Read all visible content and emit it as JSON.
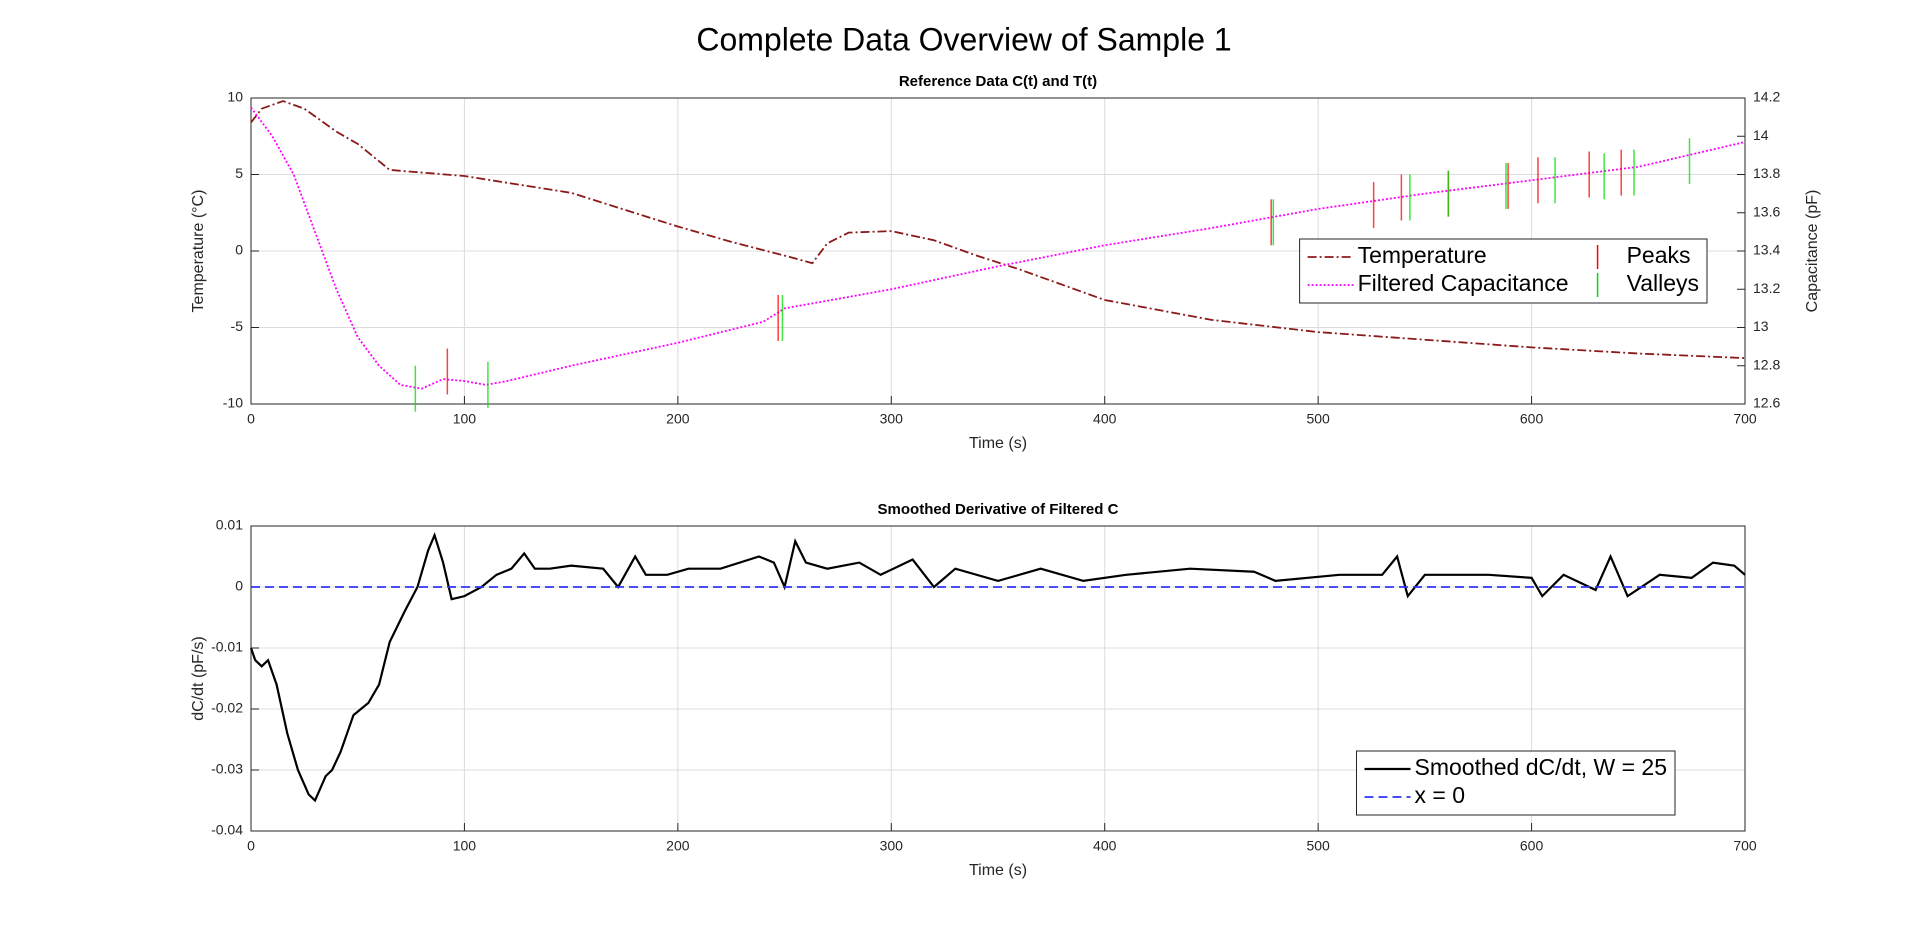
{
  "title": "Complete Data Overview of Sample 1",
  "chart_data": [
    {
      "type": "line",
      "title": "Reference Data C(t) and T(t)",
      "xlabel": "Time (s)",
      "ylabel": "Temperature (°C)",
      "y2label": "Capacitance (pF)",
      "xlim": [
        0,
        700
      ],
      "xticks": [
        0,
        100,
        200,
        300,
        400,
        500,
        600,
        700
      ],
      "ylim": [
        -10,
        10
      ],
      "yticks": [
        -10,
        -5,
        0,
        5,
        10
      ],
      "y2lim": [
        12.6,
        14.2
      ],
      "y2ticks": [
        12.6,
        12.8,
        13,
        13.2,
        13.4,
        13.6,
        13.8,
        14,
        14.2
      ],
      "grid": true,
      "legend": "east",
      "legend_columns": 2,
      "series": [
        {
          "name": "Temperature",
          "color": "#8b1a1a",
          "style": "dashdot",
          "x": [
            0,
            5,
            15,
            25,
            40,
            50,
            65,
            100,
            150,
            175,
            200,
            225,
            250,
            263,
            270,
            280,
            300,
            320,
            340,
            360,
            400,
            450,
            500,
            550,
            600,
            650,
            700
          ],
          "values": [
            8.4,
            9.3,
            9.8,
            9.3,
            7.8,
            7,
            5.3,
            4.9,
            3.8,
            2.7,
            1.6,
            0.6,
            -0.3,
            -0.8,
            0.5,
            1.2,
            1.3,
            0.7,
            -0.3,
            -1.2,
            -3.2,
            -4.5,
            -5.3,
            -5.8,
            -6.3,
            -6.7,
            -7
          ]
        },
        {
          "name": "Filtered Capacitance",
          "color": "#ff00ff",
          "style": "dotted",
          "axis": "y2",
          "x": [
            0,
            10,
            20,
            30,
            40,
            50,
            60,
            70,
            80,
            90,
            100,
            110,
            120,
            150,
            200,
            240,
            250,
            300,
            350,
            400,
            450,
            500,
            550,
            600,
            650,
            700
          ],
          "values": [
            14.15,
            14.0,
            13.8,
            13.5,
            13.2,
            12.95,
            12.8,
            12.7,
            12.68,
            12.73,
            12.72,
            12.7,
            12.72,
            12.8,
            12.92,
            13.03,
            13.1,
            13.2,
            13.32,
            13.43,
            13.52,
            13.62,
            13.7,
            13.77,
            13.84,
            13.97
          ]
        },
        {
          "name": "Peaks",
          "color": "#ff0000",
          "marker": "|",
          "axis": "y2",
          "x": [
            92,
            247,
            478,
            526,
            539,
            561,
            589,
            603,
            627,
            642
          ],
          "values": [
            12.77,
            13.05,
            13.55,
            13.64,
            13.68,
            13.7,
            13.74,
            13.77,
            13.8,
            13.81
          ]
        },
        {
          "name": "Valleys",
          "color": "#00dd00",
          "marker": "|",
          "axis": "y2",
          "x": [
            77,
            111,
            249,
            479,
            543,
            561,
            588,
            611,
            634,
            648,
            674
          ],
          "values": [
            12.68,
            12.7,
            13.05,
            13.55,
            13.68,
            13.7,
            13.74,
            13.77,
            13.79,
            13.81,
            13.87
          ]
        }
      ]
    },
    {
      "type": "line",
      "title": "Smoothed Derivative of Filtered C",
      "xlabel": "Time (s)",
      "ylabel": "dC/dt (pF/s)",
      "xlim": [
        0,
        700
      ],
      "xticks": [
        0,
        100,
        200,
        300,
        400,
        500,
        600,
        700
      ],
      "ylim": [
        -0.04,
        0.01
      ],
      "yticks": [
        -0.04,
        -0.03,
        -0.02,
        -0.01,
        0,
        0.01
      ],
      "grid": true,
      "legend": "southeast",
      "legend_columns": 1,
      "series": [
        {
          "name": "Smoothed dC/dt, W = 25",
          "color": "#000000",
          "style": "solid",
          "x": [
            0,
            2,
            5,
            8,
            12,
            17,
            22,
            27,
            30,
            35,
            38,
            42,
            48,
            55,
            60,
            65,
            72,
            78,
            83,
            86,
            90,
            94,
            100,
            108,
            115,
            122,
            128,
            133,
            140,
            150,
            165,
            172,
            180,
            185,
            195,
            205,
            220,
            238,
            245,
            250,
            255,
            260,
            270,
            285,
            295,
            310,
            320,
            330,
            350,
            370,
            390,
            410,
            440,
            470,
            480,
            510,
            530,
            537,
            542,
            550,
            580,
            600,
            605,
            615,
            630,
            637,
            645,
            660,
            675,
            685,
            695,
            700
          ],
          "values": [
            -0.01,
            -0.012,
            -0.013,
            -0.012,
            -0.016,
            -0.024,
            -0.03,
            -0.034,
            -0.035,
            -0.031,
            -0.03,
            -0.027,
            -0.021,
            -0.019,
            -0.016,
            -0.009,
            -0.004,
            0,
            0.006,
            0.0085,
            0.004,
            -0.002,
            -0.0015,
            0,
            0.002,
            0.003,
            0.0055,
            0.003,
            0.003,
            0.0035,
            0.003,
            0,
            0.005,
            0.002,
            0.002,
            0.003,
            0.003,
            0.005,
            0.004,
            0,
            0.0075,
            0.004,
            0.003,
            0.004,
            0.002,
            0.0045,
            0,
            0.003,
            0.001,
            0.003,
            0.001,
            0.002,
            0.003,
            0.0025,
            0.001,
            0.002,
            0.002,
            0.005,
            -0.0015,
            0.002,
            0.002,
            0.0015,
            -0.0015,
            0.002,
            -0.0005,
            0.005,
            -0.0015,
            0.002,
            0.0015,
            0.004,
            0.0035,
            0.002
          ]
        },
        {
          "name": "x = 0",
          "color": "#3333ff",
          "style": "dashed",
          "x": [
            0,
            700
          ],
          "values": [
            0,
            0
          ]
        }
      ]
    }
  ]
}
